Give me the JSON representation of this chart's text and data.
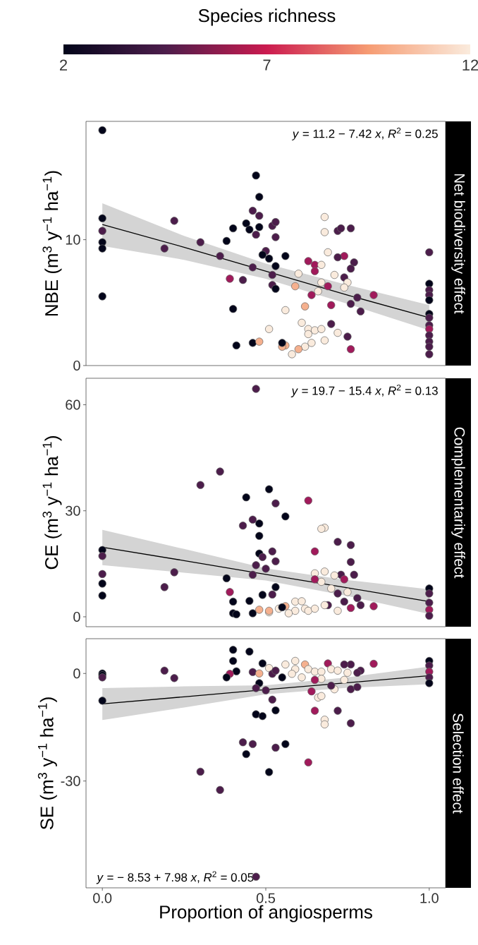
{
  "chart_data": [
    {
      "type": "scatter",
      "title": "Net biodiversity effect",
      "ylabel": "NBE (m$^{3}$ y$^{−1}$ ha$^{−1}$)",
      "annotations": [
        "*y* = 11.2 − 7.42 *x*, *R*$^{2}$ = 0.25"
      ],
      "clabel": "Species richness",
      "clim": [
        2,
        12
      ],
      "cticks": [
        2,
        7,
        12
      ],
      "xlim": [
        -0.05,
        1.05
      ],
      "ylim": [
        0,
        19.4
      ],
      "yticks": [
        0,
        10
      ],
      "tick_labels": "y",
      "series": [
        {
          "marker": "circle",
          "x": [
            0,
            0,
            0,
            0,
            0,
            0,
            0.22,
            0.19,
            0.3,
            0.36,
            0.4,
            0.38,
            0.39,
            0.43,
            0.4,
            0.41,
            0.47,
            0.48,
            0.46,
            0.48,
            0.44,
            0.45,
            0.47,
            0.48,
            0.52,
            0.53,
            0.53,
            0.5,
            0.49,
            0.51,
            0.46,
            0.53,
            0.52,
            0.52,
            0.53,
            0.51,
            0.46,
            0.48,
            0.56,
            0.68,
            0.68,
            0.72,
            0.73,
            0.76,
            0.56,
            0.69,
            0.63,
            0.65,
            0.67,
            0.65,
            0.74,
            0.72,
            0.77,
            0.76,
            0.71,
            0.74,
            0.75,
            0.6,
            0.59,
            0.67,
            0.69,
            0.66,
            0.64,
            0.74,
            0.78,
            0.76,
            0.79,
            0.83,
            0.7,
            0.62,
            0.56,
            0.61,
            0.7,
            0.72,
            0.75,
            0.76,
            0.63,
            0.63,
            0.65,
            0.67,
            0.68,
            0.64,
            0.62,
            0.6,
            0.58,
            0.55,
            0.55,
            1,
            1,
            1,
            1,
            1,
            1,
            1,
            1,
            1,
            1,
            1,
            1,
            1
          ],
          "values": [
            18.7,
            11.7,
            10.7,
            9.8,
            9.3,
            5.5,
            11.5,
            9.3,
            9.8,
            8.7,
            10.9,
            9.9,
            6.9,
            6.8,
            4.5,
            1.6,
            15.1,
            13.4,
            12.3,
            11.9,
            11.3,
            10.8,
            10.4,
            11.0,
            11.1,
            11.4,
            10.2,
            9.1,
            8.8,
            8.5,
            7.8,
            7.9,
            7.2,
            6.4,
            6.1,
            2.9,
            1.8,
            1.9,
            1.6,
            11.8,
            10.6,
            10.7,
            10.9,
            10.9,
            8.7,
            9.0,
            8.3,
            8.0,
            8.0,
            7.5,
            8.7,
            8.6,
            8.2,
            7.7,
            7.2,
            7.0,
            6.6,
            7.3,
            6.3,
            6.6,
            6.3,
            5.9,
            5.6,
            6.2,
            5.4,
            4.9,
            4.3,
            5.6,
            4.8,
            4.7,
            4.4,
            3.4,
            3.3,
            2.6,
            2.3,
            1.3,
            2.9,
            2.5,
            2.8,
            2.9,
            2.0,
            1.8,
            1.5,
            1.3,
            0.9,
            1.5,
            1.8,
            9.0,
            6.5,
            6.0,
            5.6,
            5.2,
            4.1,
            3.8,
            3.2,
            2.9,
            2.4,
            1.9,
            1.5,
            0.9
          ],
          "colors": [
            "#03051a",
            "#03051a",
            "#4c1d4b",
            "#03051a",
            "#03051a",
            "#03051a",
            "#4c1d4b",
            "#4c1d4b",
            "#4c1d4b",
            "#4c1d4b",
            "#03051a",
            "#03051a",
            "#a11a5b",
            "#4c1d4b",
            "#03051a",
            "#03051a",
            "#03051a",
            "#03051a",
            "#4c1d4b",
            "#4c1d4b",
            "#03051a",
            "#03051a",
            "#4c1d4b",
            "#03051a",
            "#4c1d4b",
            "#4c1d4b",
            "#4c1d4b",
            "#4c1d4b",
            "#03051a",
            "#03051a",
            "#4c1d4b",
            "#03051a",
            "#4c1d4b",
            "#4c1d4b",
            "#03051a",
            "#faebdd",
            "#03051a",
            "#f5b08e",
            "#f5b08e",
            "#faebdd",
            "#faebdd",
            "#4c1d4b",
            "#4c1d4b",
            "#4c1d4b",
            "#03051a",
            "#faebdd",
            "#a11a5b",
            "#a11a5b",
            "#faebdd",
            "#a11a5b",
            "#a11a5b",
            "#4c1d4b",
            "#4c1d4b",
            "#4c1d4b",
            "#faebdd",
            "#4c1d4b",
            "#faebdd",
            "#faebdd",
            "#f5b08e",
            "#faebdd",
            "#a11a5b",
            "#faebdd",
            "#a11a5b",
            "#faebdd",
            "#4c1d4b",
            "#4c1d4b",
            "#4c1d4b",
            "#a11a5b",
            "#a11a5b",
            "#f5b08e",
            "#faebdd",
            "#faebdd",
            "#4c1d4b",
            "#faebdd",
            "#4c1d4b",
            "#a11a5b",
            "#faebdd",
            "#faebdd",
            "#faebdd",
            "#faebdd",
            "#faebdd",
            "#faebdd",
            "#faebdd",
            "#f5b08e",
            "#faebdd",
            "#f5b08e",
            "#03051a",
            "#4c1d4b",
            "#03051a",
            "#4c1d4b",
            "#4c1d4b",
            "#03051a",
            "#03051a",
            "#4c1d4b",
            "#4c1d4b",
            "#a11a5b",
            "#4c1d4b",
            "#4c1d4b",
            "#4c1d4b",
            "#4c1d4b"
          ]
        },
        {
          "type": "line",
          "color": "#000000",
          "x": [
            0,
            0.25,
            0.5,
            0.75,
            1
          ],
          "values": [
            11.2,
            9.4,
            7.5,
            5.6,
            3.8
          ],
          "lower": [
            9.5,
            8.4,
            6.9,
            4.9,
            2.8
          ],
          "upper": [
            12.9,
            10.3,
            8.1,
            6.4,
            4.8
          ]
        }
      ]
    },
    {
      "type": "scatter",
      "title": "Complementarity effect",
      "ylabel": "CE (m$^{3}$ y$^{−1}$ ha$^{−1}$)",
      "annotations": [
        "*y* = 19.7 − 15.4 *x*, *R*$^{2}$ = 0.13"
      ],
      "xlim": [
        -0.05,
        1.05
      ],
      "ylim": [
        -2.8,
        67.5
      ],
      "yticks": [
        0,
        30,
        60
      ],
      "tick_labels": "y",
      "series": [
        {
          "marker": "circle",
          "x": [
            0,
            0,
            0,
            0,
            0,
            0.47,
            0.36,
            0.3,
            0.51,
            0.44,
            0.53,
            0.43,
            0.46,
            0.48,
            0.48,
            0.52,
            0.48,
            0.49,
            0.53,
            0.47,
            0.5,
            0.46,
            0.38,
            0.53,
            0.52,
            0.49,
            0.39,
            0.4,
            0.45,
            0.4,
            0.41,
            0.46,
            0.48,
            0.51,
            0.22,
            0.19,
            0.63,
            0.56,
            0.68,
            0.67,
            0.72,
            0.76,
            0.65,
            0.76,
            0.77,
            0.73,
            0.65,
            0.68,
            0.71,
            0.67,
            0.74,
            0.65,
            0.7,
            0.72,
            0.75,
            0.78,
            0.74,
            0.76,
            0.79,
            0.83,
            0.69,
            0.51,
            0.56,
            0.59,
            0.61,
            0.59,
            0.62,
            0.63,
            0.65,
            0.68,
            0.72,
            0.57,
            0.54,
            0.55,
            1,
            1,
            1,
            1,
            1
          ],
          "values": [
            18.9,
            17.2,
            12.1,
            9.4,
            6.0,
            64.5,
            41.1,
            37.3,
            36.1,
            33.8,
            32.1,
            25.8,
            27.5,
            26.4,
            22.9,
            18.5,
            17.9,
            16.9,
            15.7,
            14.6,
            13.6,
            11.9,
            10.9,
            8.4,
            6.3,
            6.2,
            7.0,
            4.3,
            4.5,
            1.0,
            0.7,
            1.0,
            2.0,
            1.3,
            12.6,
            8.4,
            32.9,
            28.4,
            25.2,
            24.9,
            21.2,
            20.3,
            18.5,
            15.5,
            11.9,
            11.9,
            12.3,
            12.8,
            11.7,
            9.9,
            10.6,
            10.6,
            8.0,
            6.6,
            7.0,
            5.3,
            4.3,
            2.5,
            3.3,
            3.0,
            3.3,
            1.7,
            3.0,
            4.3,
            4.4,
            1.7,
            2.3,
            1.7,
            2.3,
            3.3,
            1.7,
            1.0,
            2.3,
            2.7,
            8.0,
            6.6,
            4.0,
            2.0,
            0.3
          ],
          "colors": [
            "#03051a",
            "#4c1d4b",
            "#4c1d4b",
            "#03051a",
            "#03051a",
            "#4c1d4b",
            "#4c1d4b",
            "#4c1d4b",
            "#03051a",
            "#03051a",
            "#4c1d4b",
            "#4c1d4b",
            "#4c1d4b",
            "#03051a",
            "#03051a",
            "#4c1d4b",
            "#03051a",
            "#4c1d4b",
            "#4c1d4b",
            "#4c1d4b",
            "#4c1d4b",
            "#4c1d4b",
            "#03051a",
            "#03051a",
            "#4c1d4b",
            "#03051a",
            "#a11a5b",
            "#03051a",
            "#03051a",
            "#03051a",
            "#03051a",
            "#03051a",
            "#f5b08e",
            "#faebdd",
            "#4c1d4b",
            "#4c1d4b",
            "#a11a5b",
            "#03051a",
            "#faebdd",
            "#faebdd",
            "#4c1d4b",
            "#4c1d4b",
            "#a11a5b",
            "#4c1d4b",
            "#4c1d4b",
            "#4c1d4b",
            "#faebdd",
            "#faebdd",
            "#faebdd",
            "#faebdd",
            "#a11a5b",
            "#a11a5b",
            "#faebdd",
            "#4c1d4b",
            "#faebdd",
            "#4c1d4b",
            "#4c1d4b",
            "#a11a5b",
            "#4c1d4b",
            "#a11a5b",
            "#4c1d4b",
            "#f5b08e",
            "#f5b08e",
            "#faebdd",
            "#faebdd",
            "#faebdd",
            "#faebdd",
            "#faebdd",
            "#faebdd",
            "#faebdd",
            "#faebdd",
            "#faebdd",
            "#faebdd",
            "#03051a",
            "#03051a",
            "#4c1d4b",
            "#4c1d4b",
            "#a11a5b",
            "#4c1d4b"
          ]
        },
        {
          "type": "line",
          "color": "#000000",
          "x": [
            0,
            0.25,
            0.5,
            0.75,
            1
          ],
          "values": [
            19.7,
            15.9,
            12.0,
            8.2,
            4.3
          ],
          "lower": [
            14.6,
            12.5,
            10.3,
            5.9,
            0.8
          ],
          "upper": [
            24.6,
            19.2,
            13.7,
            10.4,
            7.8
          ]
        }
      ]
    },
    {
      "type": "scatter",
      "title": "Selection effect",
      "xlabel": "Proportion of angiosperms",
      "ylabel": "SE (m$^{3}$ y$^{−1}$ ha$^{−1}$)",
      "annotations": [
        "*y* = − 8.53 + 7.98 *x*, *R*$^{2}$ = 0.05"
      ],
      "xlim": [
        -0.05,
        1.05
      ],
      "ylim": [
        -59.8,
        9.7
      ],
      "xticks": [
        {
          "value": 0,
          "label": "0.0"
        },
        {
          "value": 0.5,
          "label": "0.5"
        },
        {
          "value": 1,
          "label": "1.0"
        }
      ],
      "yticks": [
        -30,
        0
      ],
      "series": [
        {
          "marker": "circle",
          "x": [
            0,
            0,
            0,
            0,
            0.19,
            0.22,
            0.4,
            0.45,
            0.4,
            0.41,
            0.39,
            0.38,
            0.46,
            0.49,
            0.51,
            0.48,
            0.52,
            0.48,
            0.47,
            0.5,
            0.52,
            0.53,
            0.47,
            0.49,
            0.43,
            0.46,
            0.44,
            0.53,
            0.51,
            0.3,
            0.36,
            0.47,
            0.83,
            0.76,
            0.74,
            0.69,
            0.79,
            0.78,
            0.56,
            0.59,
            0.62,
            0.59,
            0.63,
            0.58,
            0.61,
            0.65,
            0.67,
            0.7,
            0.72,
            0.75,
            0.67,
            0.71,
            0.74,
            0.53,
            0.55,
            0.65,
            0.64,
            0.66,
            0.67,
            0.7,
            0.76,
            0.78,
            0.65,
            0.72,
            0.68,
            0.68,
            0.76,
            0.56,
            0.63,
            1,
            1,
            1,
            1,
            1
          ],
          "values": [
            0.0,
            -0.5,
            -1.1,
            -7.6,
            0.8,
            -1.3,
            6.6,
            6.1,
            3.5,
            0.6,
            -0.1,
            -1.1,
            0.4,
            2.8,
            1.5,
            0.0,
            -0.1,
            -2.7,
            -4.1,
            -4.7,
            -7.3,
            -10.3,
            -11.4,
            -11.9,
            -19.2,
            -19.7,
            -22.5,
            -20.7,
            -27.5,
            -27.4,
            -32.5,
            -56.7,
            2.7,
            2.5,
            2.5,
            2.8,
            0.8,
            0.2,
            2.5,
            3.5,
            2.5,
            1.2,
            1.2,
            -0.1,
            -1.1,
            0.5,
            0.5,
            1.2,
            0.8,
            0.2,
            -1.5,
            -4.4,
            -1.8,
            0.8,
            -1.1,
            -1.8,
            -5.0,
            -6.7,
            -6.3,
            -3.4,
            -4.4,
            -3.8,
            -10.4,
            -10.4,
            -12.9,
            -14.2,
            -13.9,
            -19.7,
            -24.8,
            3.5,
            2.2,
            0.5,
            -1.1,
            -2.7
          ],
          "colors": [
            "#03051a",
            "#03051a",
            "#4c1d4b",
            "#03051a",
            "#4c1d4b",
            "#4c1d4b",
            "#03051a",
            "#03051a",
            "#03051a",
            "#03051a",
            "#a11a5b",
            "#03051a",
            "#4c1d4b",
            "#03051a",
            "#faebdd",
            "#f5b08e",
            "#4c1d4b",
            "#03051a",
            "#4c1d4b",
            "#4c1d4b",
            "#4c1d4b",
            "#03051a",
            "#03051a",
            "#03051a",
            "#4c1d4b",
            "#4c1d4b",
            "#03051a",
            "#4c1d4b",
            "#03051a",
            "#4c1d4b",
            "#4c1d4b",
            "#4c1d4b",
            "#a11a5b",
            "#4c1d4b",
            "#4c1d4b",
            "#a11a5b",
            "#4c1d4b",
            "#4c1d4b",
            "#faebdd",
            "#faebdd",
            "#f5b08e",
            "#faebdd",
            "#faebdd",
            "#faebdd",
            "#faebdd",
            "#faebdd",
            "#faebdd",
            "#faebdd",
            "#faebdd",
            "#faebdd",
            "#faebdd",
            "#faebdd",
            "#faebdd",
            "#4c1d4b",
            "#03051a",
            "#a11a5b",
            "#a11a5b",
            "#faebdd",
            "#faebdd",
            "#4c1d4b",
            "#4c1d4b",
            "#4c1d4b",
            "#a11a5b",
            "#4c1d4b",
            "#faebdd",
            "#faebdd",
            "#4c1d4b",
            "#03051a",
            "#a11a5b",
            "#03051a",
            "#4c1d4b",
            "#a11a5b",
            "#4c1d4b",
            "#03051a"
          ]
        },
        {
          "type": "line",
          "color": "#000000",
          "x": [
            0,
            0.25,
            0.5,
            0.75,
            1
          ],
          "values": [
            -8.5,
            -6.5,
            -4.5,
            -2.6,
            -0.6
          ],
          "lower": [
            -13.0,
            -9.5,
            -5.8,
            -4.0,
            -3.0
          ],
          "upper": [
            -4.1,
            -3.6,
            -3.3,
            -1.1,
            1.9
          ]
        }
      ]
    }
  ]
}
